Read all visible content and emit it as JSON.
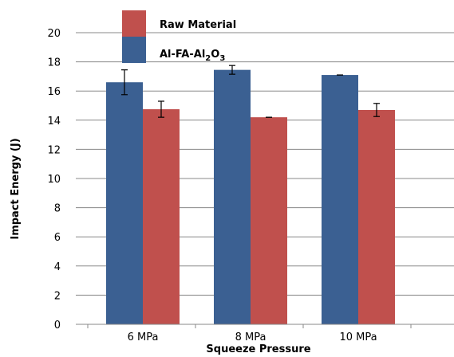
{
  "chart_data": {
    "type": "bar",
    "title": "",
    "xlabel": "Squeeze Pressure",
    "ylabel": "Impact Energy (J)",
    "ylim": [
      0,
      20
    ],
    "yticks": [
      "0",
      "2",
      "4",
      "6",
      "8",
      "10",
      "12",
      "14",
      "16",
      "18",
      "20"
    ],
    "categories": [
      "6 MPa",
      "8 MPa",
      "10 MPa"
    ],
    "grid": true,
    "legend_position": "top-left",
    "series": [
      {
        "name": "Al-FA-Al2O3",
        "legend_label": {
          "main": "Al-FA-Al",
          "sub1": "2",
          "mid": "O",
          "sub2": "3"
        },
        "color": "#3b6092",
        "values": [
          16.6,
          17.45,
          17.1
        ],
        "errors": [
          0.85,
          0.3,
          0.0
        ]
      },
      {
        "name": "Raw Material",
        "legend_label": {
          "main": "Raw Material"
        },
        "color": "#c0504d",
        "values": [
          14.75,
          14.2,
          14.7
        ],
        "errors": [
          0.55,
          0.0,
          0.45
        ]
      }
    ]
  }
}
